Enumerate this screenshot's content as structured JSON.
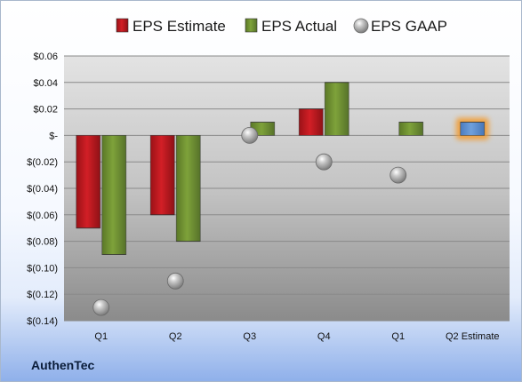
{
  "company": "AuthenTec",
  "colors": {
    "estimate": "#d21f26",
    "actual": "#7ea23a",
    "future_estimate": "#6fa0dc",
    "gaap": "#a9a9a9",
    "highlight": "#f39a2b"
  },
  "chart_data": {
    "type": "bar",
    "categories": [
      "Q1",
      "Q2",
      "Q3",
      "Q4",
      "Q1",
      "Q2 Estimate"
    ],
    "series": [
      {
        "name": "EPS Estimate",
        "values": [
          -0.07,
          -0.06,
          null,
          0.02,
          null,
          0.01
        ]
      },
      {
        "name": "EPS Actual",
        "values": [
          -0.09,
          -0.08,
          0.01,
          0.04,
          0.01,
          null
        ]
      },
      {
        "name": "EPS GAAP",
        "values": [
          -0.13,
          -0.11,
          0.0,
          -0.02,
          -0.03,
          null
        ]
      }
    ],
    "ylim": [
      -0.14,
      0.06
    ],
    "yticks": [
      {
        "value": 0.06,
        "label": "$0.06"
      },
      {
        "value": 0.04,
        "label": "$0.04"
      },
      {
        "value": 0.02,
        "label": "$0.02"
      },
      {
        "value": 0.0,
        "label": "$-"
      },
      {
        "value": -0.02,
        "label": "$(0.02)"
      },
      {
        "value": -0.04,
        "label": "$(0.04)"
      },
      {
        "value": -0.06,
        "label": "$(0.06)"
      },
      {
        "value": -0.08,
        "label": "$(0.08)"
      },
      {
        "value": -0.1,
        "label": "$(0.10)"
      },
      {
        "value": -0.12,
        "label": "$(0.12)"
      },
      {
        "value": -0.14,
        "label": "$(0.14)"
      }
    ],
    "grid": true,
    "legend": "top"
  }
}
